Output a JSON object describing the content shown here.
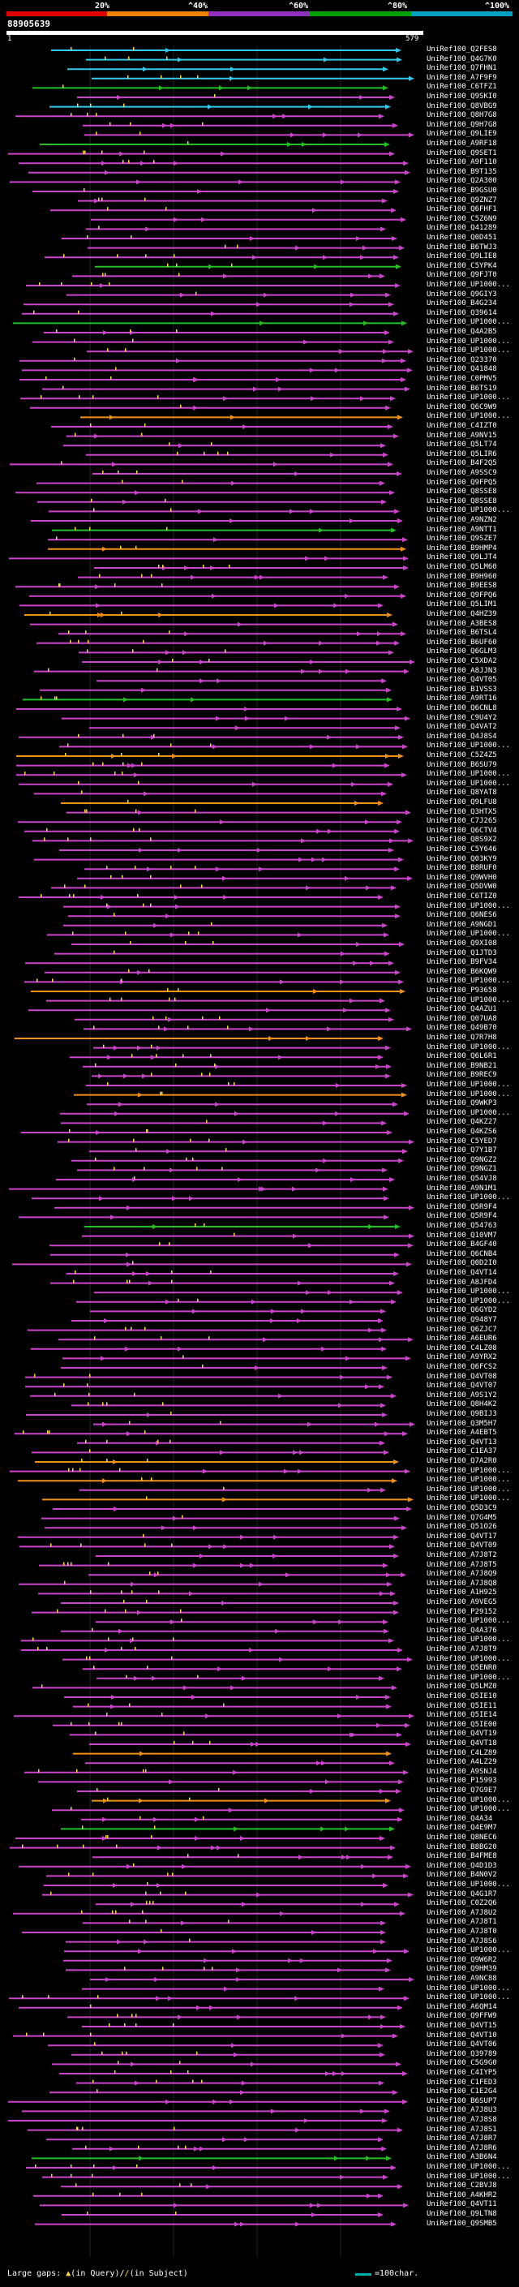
{
  "legend": {
    "labels": [
      "20%",
      "^40%",
      "^60%",
      "^80%",
      "^100%"
    ],
    "colors": [
      "#e00000",
      "#f08000",
      "#9030c0",
      "#00a000",
      "#00a0c0"
    ]
  },
  "query": {
    "name": "88905639",
    "start": "1",
    "end": "579"
  },
  "footer": {
    "large_gaps_label": "Large gaps:",
    "query_gap_label": "(in Query)/",
    "subject_gap_label": "(in Subject)",
    "scale_label": "=100char."
  },
  "hits": [
    {
      "label": "UniRef100_Q2FES8",
      "color": "cyan"
    },
    {
      "label": "UniRef100_Q4G7K0",
      "color": "cyan"
    },
    {
      "label": "UniRef100_Q7FHN1",
      "color": "cyan"
    },
    {
      "label": "UniRef100_A7F9F9",
      "color": "cyan"
    },
    {
      "label": "UniRef100_C6TFZ1",
      "color": "green"
    },
    {
      "label": "UniRef100_Q9SKI0",
      "color": "magenta"
    },
    {
      "label": "UniRef100_Q8VBG9",
      "color": "cyan"
    },
    {
      "label": "UniRef100_Q8H7G8",
      "color": "magenta"
    },
    {
      "label": "UniRef100_Q9H7G8",
      "color": "magenta"
    },
    {
      "label": "UniRef100_Q9LIE9",
      "color": "magenta"
    },
    {
      "label": "UniRef100_A9RF18",
      "color": "green"
    },
    {
      "label": "UniRef100_Q9SET1",
      "color": "magenta"
    },
    {
      "label": "UniRef100_A9F110",
      "color": "magenta"
    },
    {
      "label": "UniRef100_B9T135",
      "color": "magenta"
    },
    {
      "label": "UniRef100_Q2A300",
      "color": "magenta"
    },
    {
      "label": "UniRef100_B9GSU0",
      "color": "magenta"
    },
    {
      "label": "UniRef100_Q9ZNZ7",
      "color": "magenta"
    },
    {
      "label": "UniRef100_Q6FHF1",
      "color": "magenta"
    },
    {
      "label": "UniRef100_C5Z6N9",
      "color": "magenta"
    },
    {
      "label": "UniRef100_Q41289",
      "color": "magenta"
    },
    {
      "label": "UniRef100_Q0D451",
      "color": "magenta"
    },
    {
      "label": "UniRef100_B6TWJ3",
      "color": "magenta"
    },
    {
      "label": "UniRef100_Q9LIE8",
      "color": "magenta"
    },
    {
      "label": "UniRef100_C5YPK4",
      "color": "green"
    },
    {
      "label": "UniRef100_Q9FJT0",
      "color": "magenta"
    },
    {
      "label": "UniRef100_UP1000...",
      "color": "magenta"
    },
    {
      "label": "UniRef100_Q9GIY3",
      "color": "magenta"
    },
    {
      "label": "UniRef100_B4G234",
      "color": "magenta"
    },
    {
      "label": "UniRef100_Q39614",
      "color": "magenta"
    },
    {
      "label": "UniRef100_UP1000...",
      "color": "green"
    },
    {
      "label": "UniRef100_Q4A2B5",
      "color": "magenta"
    },
    {
      "label": "UniRef100_UP1000...",
      "color": "magenta"
    },
    {
      "label": "UniRef100_UP1000...",
      "color": "magenta"
    },
    {
      "label": "UniRef100_Q23370",
      "color": "magenta"
    },
    {
      "label": "UniRef100_Q41848",
      "color": "magenta"
    },
    {
      "label": "UniRef100_C0PMV5",
      "color": "magenta"
    },
    {
      "label": "UniRef100_B6TS19",
      "color": "magenta"
    },
    {
      "label": "UniRef100_UP1000...",
      "color": "magenta"
    },
    {
      "label": "UniRef100_Q6C9W9",
      "color": "magenta"
    },
    {
      "label": "UniRef100_UP1000...",
      "color": "orange"
    },
    {
      "label": "UniRef100_C4IZT0",
      "color": "magenta"
    },
    {
      "label": "UniRef100_A9NV15",
      "color": "magenta"
    },
    {
      "label": "UniRef100_Q5LT74",
      "color": "magenta"
    },
    {
      "label": "UniRef100_Q5LIR6",
      "color": "magenta"
    },
    {
      "label": "UniRef100_B4F2Q5",
      "color": "magenta"
    },
    {
      "label": "UniRef100_A9SSC9",
      "color": "magenta"
    },
    {
      "label": "UniRef100_Q9FPQ5",
      "color": "magenta"
    },
    {
      "label": "UniRef100_Q8SSE8",
      "color": "magenta"
    },
    {
      "label": "UniRef100_Q8SSE8",
      "color": "magenta"
    },
    {
      "label": "UniRef100_UP1000...",
      "color": "magenta"
    },
    {
      "label": "UniRef100_A9NZN2",
      "color": "magenta"
    },
    {
      "label": "UniRef100_A9NTT1",
      "color": "green"
    },
    {
      "label": "UniRef100_Q9SZE7",
      "color": "magenta"
    },
    {
      "label": "UniRef100_B9HMP4",
      "color": "orange"
    },
    {
      "label": "UniRef100_Q9LJT4",
      "color": "magenta"
    },
    {
      "label": "UniRef100_Q5LM60",
      "color": "magenta"
    },
    {
      "label": "UniRef100_B9H960",
      "color": "magenta"
    },
    {
      "label": "UniRef100_B9EES8",
      "color": "magenta"
    },
    {
      "label": "UniRef100_Q9FPQ6",
      "color": "magenta"
    },
    {
      "label": "UniRef100_Q5LIM1",
      "color": "magenta"
    },
    {
      "label": "UniRef100_Q4HZ39",
      "color": "orange"
    },
    {
      "label": "UniRef100_A3BES8",
      "color": "magenta"
    },
    {
      "label": "UniRef100_B6TSL4",
      "color": "magenta"
    },
    {
      "label": "UniRef100_B6UF60",
      "color": "magenta"
    },
    {
      "label": "UniRef100_Q6GLM3",
      "color": "magenta"
    },
    {
      "label": "UniRef100_C5XDA2",
      "color": "magenta"
    },
    {
      "label": "UniRef100_A8JJN3",
      "color": "magenta"
    },
    {
      "label": "UniRef100_Q4VT05",
      "color": "magenta"
    },
    {
      "label": "UniRef100_B1VSS3",
      "color": "magenta"
    },
    {
      "label": "UniRef100_A9RT16",
      "color": "green"
    },
    {
      "label": "UniRef100_Q6CNL8",
      "color": "magenta"
    },
    {
      "label": "UniRef100_C9U4Y2",
      "color": "magenta"
    },
    {
      "label": "UniRef100_Q4VAT2",
      "color": "magenta"
    },
    {
      "label": "UniRef100_Q4J8S4",
      "color": "magenta"
    },
    {
      "label": "UniRef100_UP1000...",
      "color": "magenta"
    },
    {
      "label": "UniRef100_C5Z4Z5",
      "color": "orange"
    },
    {
      "label": "UniRef100_B6SU79",
      "color": "magenta"
    },
    {
      "label": "UniRef100_UP1000...",
      "color": "magenta"
    },
    {
      "label": "UniRef100_UP1000...",
      "color": "magenta"
    },
    {
      "label": "UniRef100_Q8YAT8",
      "color": "magenta"
    },
    {
      "label": "UniRef100_Q9LFU8",
      "color": "orange"
    },
    {
      "label": "UniRef100_Q3HTX5",
      "color": "magenta"
    },
    {
      "label": "UniRef100_C7J265",
      "color": "magenta"
    },
    {
      "label": "UniRef100_Q6CTV4",
      "color": "magenta"
    },
    {
      "label": "UniRef100_Q8S9X2",
      "color": "magenta"
    },
    {
      "label": "UniRef100_C5Y646",
      "color": "magenta"
    },
    {
      "label": "UniRef100_Q03KY9",
      "color": "magenta"
    },
    {
      "label": "UniRef100_B8RUF0",
      "color": "magenta"
    },
    {
      "label": "UniRef100_Q9WVH0",
      "color": "magenta"
    },
    {
      "label": "UniRef100_Q5DVW0",
      "color": "magenta"
    },
    {
      "label": "UniRef100_C6TIZ0",
      "color": "magenta"
    },
    {
      "label": "UniRef100_UP1000...",
      "color": "magenta"
    },
    {
      "label": "UniRef100_Q6NES6",
      "color": "magenta"
    },
    {
      "label": "UniRef100_A9NGD1",
      "color": "magenta"
    },
    {
      "label": "UniRef100_UP1000...",
      "color": "magenta"
    },
    {
      "label": "UniRef100_Q9XI08",
      "color": "magenta"
    },
    {
      "label": "UniRef100_Q1JTD3",
      "color": "magenta"
    },
    {
      "label": "UniRef100_B9FV34",
      "color": "magenta"
    },
    {
      "label": "UniRef100_B6KQW9",
      "color": "magenta"
    },
    {
      "label": "UniRef100_UP1000...",
      "color": "magenta"
    },
    {
      "label": "UniRef100_P93658",
      "color": "orange"
    },
    {
      "label": "UniRef100_UP1000...",
      "color": "magenta"
    },
    {
      "label": "UniRef100_Q4AZU1",
      "color": "magenta"
    },
    {
      "label": "UniRef100_Q07UA8",
      "color": "magenta"
    },
    {
      "label": "UniRef100_Q49B70",
      "color": "magenta"
    },
    {
      "label": "UniRef100_Q7R7H8",
      "color": "orange"
    },
    {
      "label": "UniRef100_UP1000...",
      "color": "magenta"
    },
    {
      "label": "UniRef100_Q6L6R1",
      "color": "magenta"
    },
    {
      "label": "UniRef100_B9NB21",
      "color": "magenta"
    },
    {
      "label": "UniRef100_B9REC9",
      "color": "magenta"
    },
    {
      "label": "UniRef100_UP1000...",
      "color": "magenta"
    },
    {
      "label": "UniRef100_UP1000...",
      "color": "orange"
    },
    {
      "label": "UniRef100_Q9WKP3",
      "color": "magenta"
    },
    {
      "label": "UniRef100_UP1000...",
      "color": "magenta"
    },
    {
      "label": "UniRef100_Q4KZ27",
      "color": "magenta"
    },
    {
      "label": "UniRef100_Q4KZS6",
      "color": "magenta"
    },
    {
      "label": "UniRef100_C5YED7",
      "color": "magenta"
    },
    {
      "label": "UniRef100_Q7Y1B7",
      "color": "magenta"
    },
    {
      "label": "UniRef100_Q9NGZ2",
      "color": "magenta"
    },
    {
      "label": "UniRef100_Q9NGZ1",
      "color": "magenta"
    },
    {
      "label": "UniRef100_Q54VJ8",
      "color": "magenta"
    },
    {
      "label": "UniRef100_A9N1M1",
      "color": "magenta"
    },
    {
      "label": "UniRef100_UP1000...",
      "color": "magenta"
    },
    {
      "label": "UniRef100_Q5R9F4",
      "color": "magenta"
    },
    {
      "label": "UniRef100_Q5R9F4",
      "color": "magenta"
    },
    {
      "label": "UniRef100_Q54763",
      "color": "green"
    },
    {
      "label": "UniRef100_Q10VM7",
      "color": "magenta"
    },
    {
      "label": "UniRef100_B4GF40",
      "color": "magenta"
    },
    {
      "label": "UniRef100_Q6CNB4",
      "color": "magenta"
    },
    {
      "label": "UniRef100_Q0D2I0",
      "color": "magenta"
    },
    {
      "label": "UniRef100_Q4VT14",
      "color": "magenta"
    },
    {
      "label": "UniRef100_A8JFD4",
      "color": "magenta"
    },
    {
      "label": "UniRef100_UP1000...",
      "color": "magenta"
    },
    {
      "label": "UniRef100_UP1000...",
      "color": "magenta"
    },
    {
      "label": "UniRef100_Q6GYD2",
      "color": "magenta"
    },
    {
      "label": "UniRef100_Q948Y7",
      "color": "magenta"
    },
    {
      "label": "UniRef100_Q6ZJC7",
      "color": "magenta"
    },
    {
      "label": "UniRef100_A6EUR6",
      "color": "magenta"
    },
    {
      "label": "UniRef100_C4LZ08",
      "color": "magenta"
    },
    {
      "label": "UniRef100_A9YRX2",
      "color": "magenta"
    },
    {
      "label": "UniRef100_Q6FCS2",
      "color": "magenta"
    },
    {
      "label": "UniRef100_Q4VT08",
      "color": "magenta"
    },
    {
      "label": "UniRef100_Q4VT07",
      "color": "magenta"
    },
    {
      "label": "UniRef100_A9S1Y2",
      "color": "magenta"
    },
    {
      "label": "UniRef100_Q8H4K2",
      "color": "magenta"
    },
    {
      "label": "UniRef100_Q9BIJ3",
      "color": "magenta"
    },
    {
      "label": "UniRef100_Q3M5H7",
      "color": "magenta"
    },
    {
      "label": "UniRef100_A4EBT5",
      "color": "magenta"
    },
    {
      "label": "UniRef100_Q4VT13",
      "color": "magenta"
    },
    {
      "label": "UniRef100_C1EA37",
      "color": "magenta"
    },
    {
      "label": "UniRef100_Q7A2R0",
      "color": "orange"
    },
    {
      "label": "UniRef100_UP1000...",
      "color": "magenta"
    },
    {
      "label": "UniRef100_UP1000...",
      "color": "orange"
    },
    {
      "label": "UniRef100_UP1000...",
      "color": "magenta"
    },
    {
      "label": "UniRef100_UP1000...",
      "color": "orange"
    },
    {
      "label": "UniRef100_Q5D3C9",
      "color": "magenta"
    },
    {
      "label": "UniRef100_Q7G4M5",
      "color": "magenta"
    },
    {
      "label": "UniRef100_Q51O26",
      "color": "magenta"
    },
    {
      "label": "UniRef100_Q4VT17",
      "color": "magenta"
    },
    {
      "label": "UniRef100_Q4VT09",
      "color": "magenta"
    },
    {
      "label": "UniRef100_A7J8T2",
      "color": "magenta"
    },
    {
      "label": "UniRef100_A7J8T5",
      "color": "magenta"
    },
    {
      "label": "UniRef100_A7J8Q9",
      "color": "magenta"
    },
    {
      "label": "UniRef100_A7J8Q8",
      "color": "magenta"
    },
    {
      "label": "UniRef100_A1H925",
      "color": "magenta"
    },
    {
      "label": "UniRef100_A9VEG5",
      "color": "magenta"
    },
    {
      "label": "UniRef100_P29152",
      "color": "magenta"
    },
    {
      "label": "UniRef100_UP1000...",
      "color": "magenta"
    },
    {
      "label": "UniRef100_Q4A376",
      "color": "magenta"
    },
    {
      "label": "UniRef100_UP1000...",
      "color": "magenta"
    },
    {
      "label": "UniRef100_A7J8T9",
      "color": "magenta"
    },
    {
      "label": "UniRef100_UP1000...",
      "color": "magenta"
    },
    {
      "label": "UniRef100_Q5ENR0",
      "color": "magenta"
    },
    {
      "label": "UniRef100_UP1000...",
      "color": "magenta"
    },
    {
      "label": "UniRef100_Q5LMZ0",
      "color": "magenta"
    },
    {
      "label": "UniRef100_Q5IE10",
      "color": "magenta"
    },
    {
      "label": "UniRef100_Q5IE11",
      "color": "magenta"
    },
    {
      "label": "UniRef100_Q5IE14",
      "color": "magenta"
    },
    {
      "label": "UniRef100_Q5IE00",
      "color": "magenta"
    },
    {
      "label": "UniRef100_Q4VT19",
      "color": "magenta"
    },
    {
      "label": "UniRef100_Q4VT18",
      "color": "magenta"
    },
    {
      "label": "UniRef100_C4LZ89",
      "color": "orange"
    },
    {
      "label": "UniRef100_A4LZ29",
      "color": "magenta"
    },
    {
      "label": "UniRef100_A9SNJ4",
      "color": "magenta"
    },
    {
      "label": "UniRef100_P15993",
      "color": "magenta"
    },
    {
      "label": "UniRef100_Q7G9E7",
      "color": "magenta"
    },
    {
      "label": "UniRef100_UP1000...",
      "color": "orange"
    },
    {
      "label": "UniRef100_UP1000...",
      "color": "magenta"
    },
    {
      "label": "UniRef100_Q4A34",
      "color": "magenta"
    },
    {
      "label": "UniRef100_Q4E9M7",
      "color": "green"
    },
    {
      "label": "UniRef100_Q8NEC6",
      "color": "magenta"
    },
    {
      "label": "UniRef100_B8BG20",
      "color": "magenta"
    },
    {
      "label": "UniRef100_B4FME8",
      "color": "magenta"
    },
    {
      "label": "UniRef100_Q4D1D3",
      "color": "magenta"
    },
    {
      "label": "UniRef100_B4N0V2",
      "color": "magenta"
    },
    {
      "label": "UniRef100_UP1000...",
      "color": "magenta"
    },
    {
      "label": "UniRef100_Q4G1R7",
      "color": "magenta"
    },
    {
      "label": "UniRef100_C0Z2Q6",
      "color": "magenta"
    },
    {
      "label": "UniRef100_A7J8U2",
      "color": "magenta"
    },
    {
      "label": "UniRef100_A7J8T1",
      "color": "magenta"
    },
    {
      "label": "UniRef100_A7J8T0",
      "color": "magenta"
    },
    {
      "label": "UniRef100_A7J8S6",
      "color": "magenta"
    },
    {
      "label": "UniRef100_UP1000...",
      "color": "magenta"
    },
    {
      "label": "UniRef100_Q9W6R2",
      "color": "magenta"
    },
    {
      "label": "UniRef100_Q9HM39",
      "color": "magenta"
    },
    {
      "label": "UniRef100_A9NC88",
      "color": "magenta"
    },
    {
      "label": "UniRef100_UP1000...",
      "color": "magenta"
    },
    {
      "label": "UniRef100_UP1000...",
      "color": "magenta"
    },
    {
      "label": "UniRef100_A6QM14",
      "color": "magenta"
    },
    {
      "label": "UniRef100_Q9FFW9",
      "color": "magenta"
    },
    {
      "label": "UniRef100_Q4VT15",
      "color": "magenta"
    },
    {
      "label": "UniRef100_Q4VT10",
      "color": "magenta"
    },
    {
      "label": "UniRef100_Q4VT06",
      "color": "magenta"
    },
    {
      "label": "UniRef100_Q39789",
      "color": "magenta"
    },
    {
      "label": "UniRef100_C5G9G0",
      "color": "magenta"
    },
    {
      "label": "UniRef100_C4IYP5",
      "color": "magenta"
    },
    {
      "label": "UniRef100_C1FED3",
      "color": "magenta"
    },
    {
      "label": "UniRef100_C1E2G4",
      "color": "magenta"
    },
    {
      "label": "UniRef100_B6SUP7",
      "color": "magenta"
    },
    {
      "label": "UniRef100_A7J8U3",
      "color": "magenta"
    },
    {
      "label": "UniRef100_A7J8S8",
      "color": "magenta"
    },
    {
      "label": "UniRef100_A7J8S1",
      "color": "magenta"
    },
    {
      "label": "UniRef100_A7J8R7",
      "color": "magenta"
    },
    {
      "label": "UniRef100_A7J8R6",
      "color": "magenta"
    },
    {
      "label": "UniRef100_A3B6N4",
      "color": "green"
    },
    {
      "label": "UniRef100_UP1000...",
      "color": "magenta"
    },
    {
      "label": "UniRef100_UP1000...",
      "color": "magenta"
    },
    {
      "label": "UniRef100_C2BVJ8",
      "color": "magenta"
    },
    {
      "label": "UniRef100_A4KHR2",
      "color": "magenta"
    },
    {
      "label": "UniRef100_Q4VT11",
      "color": "magenta"
    },
    {
      "label": "UniRef100_Q9LTN8",
      "color": "magenta"
    },
    {
      "label": "UniRef100_Q9SMB5",
      "color": "magenta"
    }
  ]
}
